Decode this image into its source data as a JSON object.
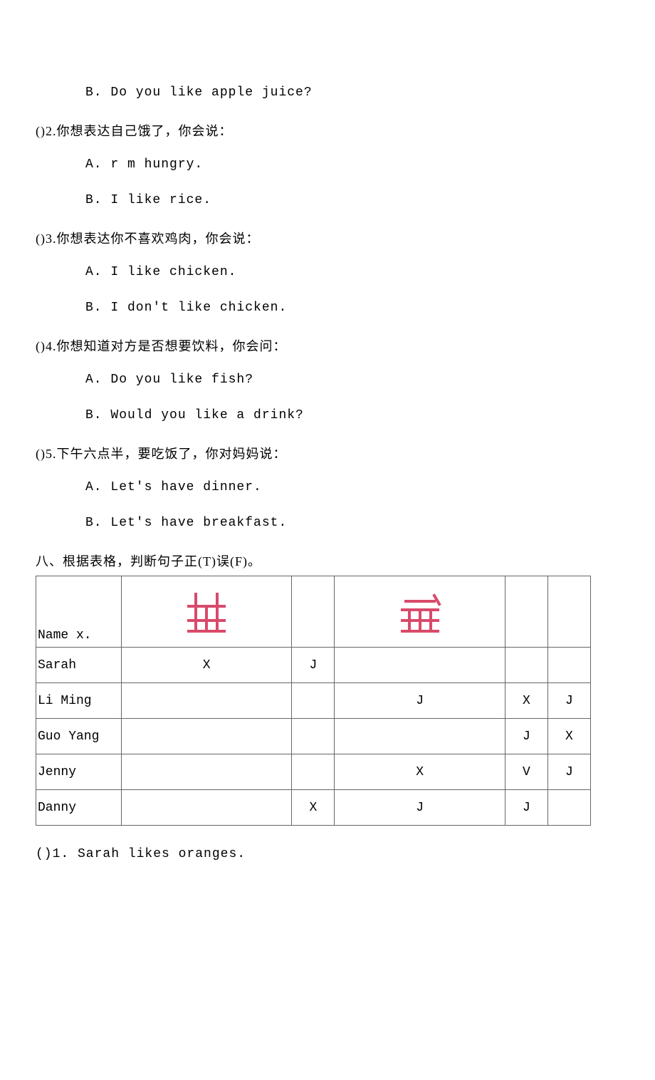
{
  "q1": {
    "optionB": "B.  Do you like apple juice?"
  },
  "q2": {
    "prompt": "()2.你想表达自己饿了，你会说：",
    "optionA": "A.  r m hungry.",
    "optionB": "B.  I like rice."
  },
  "q3": {
    "prompt": "()3.你想表达你不喜欢鸡肉，你会说：",
    "optionA": "A.  I like chicken.",
    "optionB": "B.  I don't like chicken."
  },
  "q4": {
    "prompt": "()4.你想知道对方是否想要饮料，你会问：",
    "optionA": "A.  Do you like fish?",
    "optionB": "B.  Would you like a drink?"
  },
  "q5": {
    "prompt": "()5.下午六点半，要吃饭了，你对妈妈说：",
    "optionA": "A.  Let's have dinner.",
    "optionB": "B.  Let's have breakfast."
  },
  "section8": {
    "header": "八、根据表格，判断句子正(T)误(F)。",
    "table": {
      "nameHeader": "Name x.",
      "columns": [
        "",
        "",
        "",
        "",
        ""
      ],
      "rows": [
        {
          "name": "Sarah",
          "cells": [
            "X",
            "J",
            "",
            "",
            ""
          ]
        },
        {
          "name": "Li Ming",
          "cells": [
            "",
            "",
            "J",
            "X",
            "J"
          ]
        },
        {
          "name": "Guo Yang",
          "cells": [
            "",
            "",
            "",
            "J",
            "X"
          ]
        },
        {
          "name": "Jenny",
          "cells": [
            "",
            "",
            "X",
            "V",
            "J"
          ]
        },
        {
          "name": "Danny",
          "cells": [
            "",
            "X",
            "J",
            "J",
            ""
          ]
        }
      ],
      "header_bg": "#ffffff",
      "cell_bg": "#ffffff",
      "border_color": "#666666",
      "font_color": "#000000",
      "cell_font_size": 18
    },
    "q1": "()1. Sarah likes oranges."
  },
  "icons": {
    "icon1_color": "#d94a6a",
    "icon2_color": "#d94a6a"
  }
}
